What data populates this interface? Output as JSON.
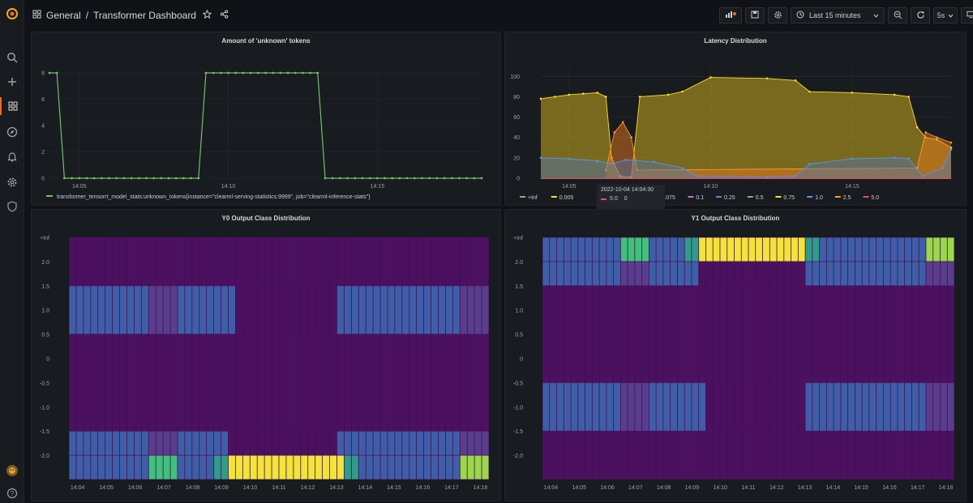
{
  "topbar": {
    "breadcrumb_folder": "General",
    "breadcrumb_sep": "/",
    "breadcrumb_title": "Transformer Dashboard",
    "time_range": "Last 15 minutes",
    "refresh_interval": "5s"
  },
  "icons": {
    "logo": "grafana-logo-icon",
    "search": "search-icon",
    "create": "plus-icon",
    "dashboards": "dashboards-grid-icon",
    "explore": "compass-icon",
    "alerting": "bell-icon",
    "config": "gear-icon",
    "admin": "shield-icon",
    "profile": "avatar-icon",
    "help": "help-icon"
  },
  "colors": {
    "accent": "#f26b1d",
    "green": "#73bf69",
    "yellow": "#fade2a",
    "blue": "#5794f2",
    "purple": "#4b1160"
  },
  "panels": {
    "tokens": {
      "title": "Amount of 'unknown' tokens",
      "legend": "transformer_tensorrt_model_stats:unknown_tokens{instance=\"clearml-serving-statistics:9999\", job=\"clearml-inference-stats\"}"
    },
    "latency": {
      "title": "Latency Distribution",
      "tooltip_time": "2022-10-04 14:04:30",
      "tooltip_label": "5.0",
      "tooltip_value": "0"
    },
    "y0": {
      "title": "Y0 Output Class Distribution"
    },
    "y1": {
      "title": "Y1 Output Class Distribution"
    }
  },
  "chart_data": [
    {
      "type": "line",
      "title": "Amount of 'unknown' tokens",
      "x_ticks": [
        "14:05",
        "14:10",
        "14:15"
      ],
      "y_ticks": [
        0,
        2,
        4,
        6,
        8
      ],
      "ylim": [
        0,
        8
      ],
      "x_minutes": [
        4.0,
        18.5
      ],
      "series": [
        {
          "name": "transformer_tensorrt_model_stats:unknown_tokens{instance=\"clearml-serving-statistics:9999\", job=\"clearml-inference-stats\"}",
          "color": "#73bf69",
          "points": [
            [
              4.0,
              8
            ],
            [
              4.25,
              8
            ],
            [
              4.5,
              0
            ],
            [
              9.0,
              0
            ],
            [
              9.25,
              8
            ],
            [
              13.0,
              8
            ],
            [
              13.25,
              0
            ],
            [
              18.5,
              0
            ]
          ]
        }
      ],
      "legend_placement": "bottom-left"
    },
    {
      "type": "area",
      "title": "Latency Distribution",
      "x_ticks": [
        "14:05",
        "14:10",
        "14:15"
      ],
      "y_ticks": [
        0,
        20,
        40,
        60,
        80,
        100
      ],
      "ylim": [
        0,
        105
      ],
      "x_minutes": [
        4.0,
        18.5
      ],
      "legend": [
        "+Inf",
        "0.005",
        "0.0",
        "0.075",
        "0.1",
        "0.25",
        "0.5",
        "0.75",
        "1.0",
        "2.5",
        "5.0"
      ],
      "legend_colors": [
        "#73bf69",
        "#fade2a",
        "#5794f2",
        "#5794f2",
        "#b877d9",
        "#8e6fd8",
        "#73bf69",
        "#fade2a",
        "#5794f2",
        "#ff9830",
        "#f2495c"
      ],
      "series": [
        {
          "name": "0.75",
          "color": "#fade2a",
          "points": [
            [
              4.0,
              78
            ],
            [
              4.5,
              80
            ],
            [
              5.0,
              82
            ],
            [
              5.5,
              83
            ],
            [
              6.0,
              84
            ],
            [
              6.3,
              80
            ],
            [
              6.5,
              20
            ],
            [
              6.8,
              2
            ],
            [
              7.2,
              1
            ],
            [
              7.5,
              80
            ],
            [
              8.5,
              82
            ],
            [
              9.0,
              85
            ],
            [
              10.0,
              99
            ],
            [
              12.0,
              98
            ],
            [
              13.0,
              96
            ],
            [
              13.5,
              85
            ],
            [
              15.0,
              84
            ],
            [
              16.5,
              82
            ],
            [
              17.0,
              80
            ],
            [
              17.3,
              50
            ],
            [
              17.6,
              40
            ],
            [
              18.0,
              38
            ],
            [
              18.5,
              30
            ]
          ]
        },
        {
          "name": "2.5",
          "color": "#ff9830",
          "points": [
            [
              6.3,
              8
            ],
            [
              6.6,
              45
            ],
            [
              6.9,
              55
            ],
            [
              7.2,
              40
            ],
            [
              7.4,
              8
            ],
            [
              17.3,
              10
            ],
            [
              17.6,
              45
            ],
            [
              18.0,
              40
            ],
            [
              18.5,
              35
            ]
          ]
        },
        {
          "name": "1.0",
          "color": "#5794f2",
          "points": [
            [
              4.0,
              20
            ],
            [
              5.0,
              19
            ],
            [
              6.0,
              17
            ],
            [
              6.5,
              14
            ],
            [
              7.0,
              18
            ],
            [
              8.0,
              16
            ],
            [
              9.0,
              10
            ],
            [
              9.5,
              2
            ],
            [
              12.0,
              1
            ],
            [
              13.0,
              2
            ],
            [
              13.5,
              14
            ],
            [
              15.0,
              19
            ],
            [
              16.5,
              20
            ],
            [
              17.0,
              19
            ],
            [
              17.5,
              2
            ],
            [
              18.2,
              10
            ],
            [
              18.5,
              28
            ]
          ]
        }
      ],
      "tooltip": {
        "time": "2022-10-04 14:04:30",
        "series": "5.0",
        "value": 0
      },
      "legend_placement": "bottom-left"
    },
    {
      "type": "heatmap",
      "title": "Y0 Output Class Distribution",
      "y_ticks": [
        "+Inf",
        "2.0",
        "1.5",
        "1.0",
        "0.5",
        "0",
        "-0.5",
        "-1.0",
        "-1.5",
        "-2.0"
      ],
      "x_ticks": [
        "14:04",
        "14:05",
        "14:06",
        "14:07",
        "14:08",
        "14:09",
        "14:10",
        "14:11",
        "14:12",
        "14:13",
        "14:14",
        "14:15",
        "14:16",
        "14:17",
        "14:18"
      ],
      "columns": 58,
      "rows": [
        {
          "range": "1.0 to 1.5",
          "default": "blue",
          "runs": [
            [
              0,
              11,
              "blue"
            ],
            [
              11,
              15,
              "dim"
            ],
            [
              15,
              23,
              "blue"
            ],
            [
              23,
              37,
              "purple"
            ],
            [
              37,
              54,
              "blue"
            ],
            [
              54,
              58,
              "dim"
            ]
          ]
        },
        {
          "range": "-2.5 to -2.0",
          "default": "blue",
          "runs": [
            [
              0,
              11,
              "blue"
            ],
            [
              11,
              15,
              "green"
            ],
            [
              15,
              20,
              "blue"
            ],
            [
              20,
              22,
              "teal"
            ],
            [
              22,
              38,
              "yellow"
            ],
            [
              38,
              40,
              "teal"
            ],
            [
              40,
              54,
              "blue"
            ],
            [
              54,
              58,
              "lime"
            ]
          ]
        },
        {
          "range": "-2.0 to -1.5",
          "default": "blue",
          "runs": [
            [
              0,
              11,
              "blue"
            ],
            [
              11,
              15,
              "dim"
            ],
            [
              15,
              22,
              "blue"
            ],
            [
              22,
              37,
              "purple"
            ],
            [
              37,
              54,
              "blue"
            ],
            [
              54,
              58,
              "dim"
            ]
          ]
        }
      ],
      "color_scale": {
        "purple": "#4b1160",
        "dim": "#5a3e8e",
        "blue": "#3f5ea8",
        "teal": "#2f9c8a",
        "green": "#3fc27c",
        "lime": "#9bd84a",
        "yellow": "#f3e33a"
      }
    },
    {
      "type": "heatmap",
      "title": "Y1 Output Class Distribution",
      "y_ticks": [
        "+Inf",
        "2.0",
        "1.5",
        "1.0",
        "0.5",
        "0",
        "-0.5",
        "-1.0",
        "-1.5",
        "-2.0"
      ],
      "x_ticks": [
        "14:04",
        "14:05",
        "14:06",
        "14:07",
        "14:08",
        "14:09",
        "14:10",
        "14:11",
        "14:12",
        "14:13",
        "14:14",
        "14:15",
        "14:16",
        "14:17",
        "14:18"
      ],
      "columns": 58,
      "rows": [
        {
          "range": "2.0 to +Inf",
          "default": "blue",
          "runs": [
            [
              0,
              11,
              "blue"
            ],
            [
              11,
              15,
              "green"
            ],
            [
              15,
              20,
              "blue"
            ],
            [
              20,
              22,
              "teal"
            ],
            [
              22,
              37,
              "yellow"
            ],
            [
              37,
              39,
              "teal"
            ],
            [
              39,
              54,
              "blue"
            ],
            [
              54,
              58,
              "lime"
            ]
          ]
        },
        {
          "range": "1.5 to 2.0",
          "default": "blue",
          "runs": [
            [
              0,
              11,
              "blue"
            ],
            [
              11,
              15,
              "dim"
            ],
            [
              15,
              22,
              "blue"
            ],
            [
              22,
              37,
              "purple"
            ],
            [
              37,
              54,
              "blue"
            ],
            [
              54,
              58,
              "dim"
            ]
          ]
        },
        {
          "range": "-1.5 to -1.0",
          "default": "blue",
          "runs": [
            [
              0,
              11,
              "blue"
            ],
            [
              11,
              15,
              "dim"
            ],
            [
              15,
              23,
              "blue"
            ],
            [
              23,
              37,
              "purple"
            ],
            [
              37,
              54,
              "blue"
            ],
            [
              54,
              58,
              "dim"
            ]
          ]
        }
      ],
      "color_scale": {
        "purple": "#4b1160",
        "dim": "#5a3e8e",
        "blue": "#3f5ea8",
        "teal": "#2f9c8a",
        "green": "#3fc27c",
        "lime": "#9bd84a",
        "yellow": "#f3e33a"
      }
    }
  ]
}
